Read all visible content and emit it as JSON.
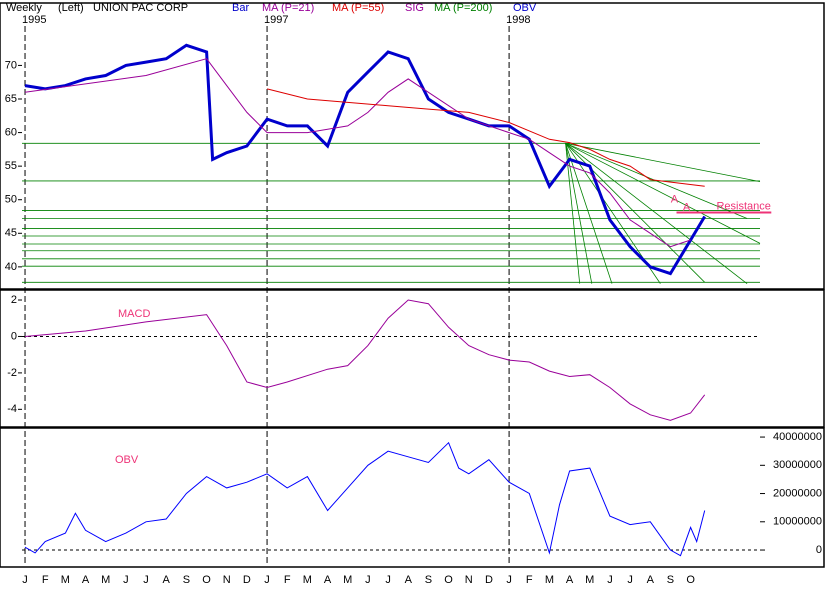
{
  "header": {
    "period": "Weekly",
    "side": "(Left)",
    "symbol": "UNION PAC CORP",
    "items": [
      {
        "label": "Bar",
        "color": "#0000cc"
      },
      {
        "label": "MA (P=21)",
        "color": "#990099"
      },
      {
        "label": "MA (P=55)",
        "color": "#dd0000"
      },
      {
        "label": "SIG",
        "color": "#990099"
      },
      {
        "label": "MA (P=200)",
        "color": "#008000"
      },
      {
        "label": "OBV",
        "color": "#0000cc"
      }
    ],
    "years": [
      {
        "label": "1995",
        "x": 0
      },
      {
        "label": "1997",
        "x": 12
      },
      {
        "label": "1998",
        "x": 24
      }
    ]
  },
  "months": [
    "J",
    "F",
    "M",
    "A",
    "M",
    "J",
    "J",
    "A",
    "S",
    "O",
    "N",
    "D",
    "J",
    "F",
    "M",
    "A",
    "M",
    "J",
    "J",
    "A",
    "S",
    "O",
    "N",
    "D",
    "J",
    "F",
    "M",
    "A",
    "M",
    "J",
    "J",
    "A",
    "S",
    "O"
  ],
  "chart_data": [
    {
      "type": "line",
      "xlim": [
        -0.15,
        36.44
      ],
      "ylim": [
        37,
        79
      ],
      "yticks": [
        40,
        45,
        50,
        55,
        60,
        65,
        70
      ],
      "series": [
        {
          "name": "Bar",
          "color": "#0000cc",
          "x": [
            0,
            1,
            2,
            3,
            4,
            5,
            6,
            7,
            8,
            9,
            9.3,
            10,
            11,
            12,
            13,
            14,
            15,
            16,
            17,
            18,
            19,
            20,
            21,
            22,
            23,
            24,
            25,
            26,
            27,
            28,
            29,
            30,
            31,
            32,
            33,
            33.7
          ],
          "values": [
            67,
            66.5,
            67,
            68,
            68.5,
            70,
            70.5,
            71,
            73,
            72,
            56,
            57,
            58,
            62,
            61,
            61,
            58,
            66,
            69,
            72,
            71,
            65,
            63,
            62,
            61,
            61,
            59,
            52,
            56,
            55,
            47,
            43,
            40,
            39,
            44,
            47.5
          ]
        },
        {
          "name": "MA (P=21)",
          "color": "#990099",
          "x": [
            0,
            6,
            9,
            10,
            11,
            12,
            14,
            16,
            17,
            18,
            19,
            20,
            22,
            24,
            25,
            26,
            27,
            28,
            29,
            30,
            31,
            32,
            33
          ],
          "values": [
            66,
            68.5,
            71,
            67,
            63,
            60,
            60,
            61,
            63,
            66,
            68,
            66,
            62,
            60,
            59,
            57,
            55,
            54,
            51,
            47,
            45,
            43,
            44
          ]
        },
        {
          "name": "MA (P=55)",
          "color": "#dd0000",
          "x": [
            12,
            14,
            16,
            18,
            20,
            22,
            24,
            26,
            27,
            28,
            29,
            30,
            31,
            33.7
          ],
          "values": [
            66.5,
            65,
            64.5,
            64,
            63.5,
            63,
            61.5,
            59,
            58.5,
            57.5,
            56,
            55,
            53,
            52
          ]
        }
      ],
      "levels": [
        58.4,
        52.8,
        48.4,
        47.2,
        45.7,
        44.6,
        43.4,
        42.4,
        41.2,
        40.1,
        37.7
      ],
      "level_color": "#008000",
      "fan": {
        "from": [
          26.8,
          58.4
        ],
        "to_x": [
          36.44,
          35.8,
          36.44,
          35.8,
          33.7,
          31.5,
          29.1,
          28.1,
          27.5
        ],
        "to_y": [
          52.7,
          47.2,
          43.5,
          37.5,
          37.7,
          37.5,
          37.5,
          37.5,
          37.5
        ]
      },
      "resistance": {
        "x": [
          32.3,
          37
        ],
        "value": 48.1,
        "label": "Resistance",
        "color": "#ee3377"
      },
      "annotations": [
        {
          "text": "A",
          "x": 32.2,
          "y": 50
        },
        {
          "text": "A",
          "x": 32.8,
          "y": 48.8
        }
      ]
    },
    {
      "type": "line",
      "label": "MACD",
      "xlim": [
        -0.15,
        36.44
      ],
      "ylim": [
        -4.86,
        2.44
      ],
      "yticks": [
        -4,
        -2,
        0,
        2
      ],
      "zero": 0,
      "series": [
        {
          "name": "MACD",
          "color": "#990099",
          "x": [
            0,
            3,
            6,
            9,
            10,
            11,
            12,
            13,
            15,
            16,
            17,
            18,
            19,
            20,
            21,
            22,
            23,
            24,
            25,
            26,
            27,
            28,
            29,
            30,
            31,
            32,
            33,
            33.7
          ],
          "values": [
            0,
            0.3,
            0.8,
            1.2,
            -0.5,
            -2.5,
            -2.8,
            -2.5,
            -1.8,
            -1.6,
            -0.5,
            1,
            2,
            1.8,
            0.5,
            -0.5,
            -1,
            -1.3,
            -1.4,
            -1.9,
            -2.2,
            -2.1,
            -2.8,
            -3.7,
            -4.3,
            -4.6,
            -4.2,
            -3.2
          ]
        }
      ]
    },
    {
      "type": "line",
      "label": "OBV",
      "xlim": [
        -0.15,
        36.44
      ],
      "ylim": [
        -5300000,
        42500000
      ],
      "yticks": [
        0,
        10000000,
        20000000,
        30000000,
        40000000
      ],
      "zero": 0,
      "series": [
        {
          "name": "OBV",
          "color": "#0000ff",
          "x": [
            0,
            0.5,
            1,
            2,
            2.5,
            3,
            4,
            5,
            6,
            7,
            8,
            9,
            10,
            11,
            12,
            13,
            14,
            15,
            16,
            17,
            18,
            19,
            20,
            21,
            21.5,
            22,
            23,
            24,
            25,
            26,
            26.5,
            27,
            28,
            29,
            30,
            31,
            32,
            32.5,
            33,
            33.3,
            33.7
          ],
          "values": [
            1000000,
            -1000000,
            3000000,
            6000000,
            13000000,
            7000000,
            3000000,
            6000000,
            10000000,
            11000000,
            20000000,
            26000000,
            22000000,
            24000000,
            27000000,
            22000000,
            26000000,
            14000000,
            22000000,
            30000000,
            35000000,
            33000000,
            31000000,
            38000000,
            29000000,
            27000000,
            32000000,
            24000000,
            20000000,
            -1000000,
            16000000,
            28000000,
            29000000,
            12000000,
            9000000,
            10000000,
            0,
            -2000000,
            8000000,
            3000000,
            14000000
          ]
        }
      ]
    }
  ]
}
